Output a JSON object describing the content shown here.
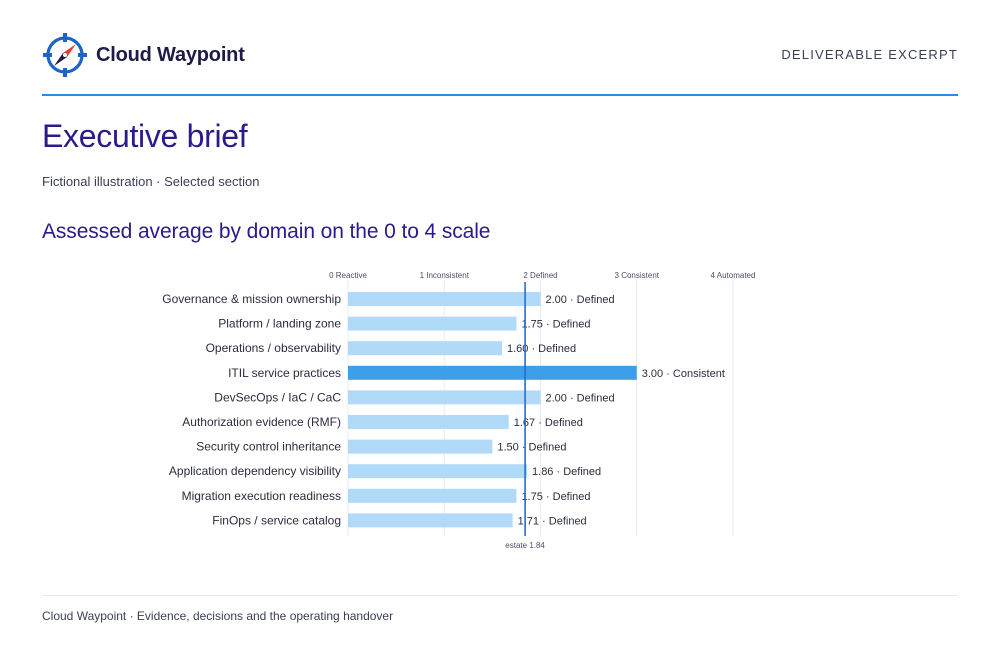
{
  "header": {
    "brand": "Cloud Waypoint",
    "label": "DELIVERABLE EXCERPT",
    "logo_icon": "compass-icon"
  },
  "page": {
    "title": "Executive brief",
    "subtitle": "Fictional illustration · Selected section"
  },
  "chart_data": {
    "type": "bar",
    "orientation": "horizontal",
    "title": "Assessed average by domain on the 0 to 4 scale",
    "xlim": [
      0,
      4
    ],
    "ticks": [
      {
        "value": 0,
        "label": "0 Reactive"
      },
      {
        "value": 1,
        "label": "1 Inconsistent"
      },
      {
        "value": 2,
        "label": "2 Defined"
      },
      {
        "value": 3,
        "label": "3 Consistent"
      },
      {
        "value": 4,
        "label": "4 Automated"
      }
    ],
    "categories": [
      "Governance & mission ownership",
      "Platform / landing zone",
      "Operations / observability",
      "ITIL service practices",
      "DevSecOps / IaC / CaC",
      "Authorization evidence (RMF)",
      "Security control inheritance",
      "Application dependency visibility",
      "Migration execution readiness",
      "FinOps / service catalog"
    ],
    "values": [
      2.0,
      1.75,
      1.6,
      3.0,
      2.0,
      1.67,
      1.5,
      1.86,
      1.75,
      1.71
    ],
    "value_labels": [
      "2.00 · Defined",
      "1.75 · Defined",
      "1.60 · Defined",
      "3.00 · Consistent",
      "2.00 · Defined",
      "1.67 · Defined",
      "1.50 · Defined",
      "1.86 · Defined",
      "1.75 · Defined",
      "1.71 · Defined"
    ],
    "highlight_index": 3,
    "reference_line": {
      "value": 1.84,
      "label": "estate 1.84"
    },
    "grid": true,
    "colors": {
      "bar": "#b1daf8",
      "highlight": "#3d9fe8",
      "reference": "#1f6fd0",
      "grid": "#e8ebf1"
    }
  },
  "footer": {
    "text": "Cloud Waypoint · Evidence, decisions and the operating handover"
  }
}
